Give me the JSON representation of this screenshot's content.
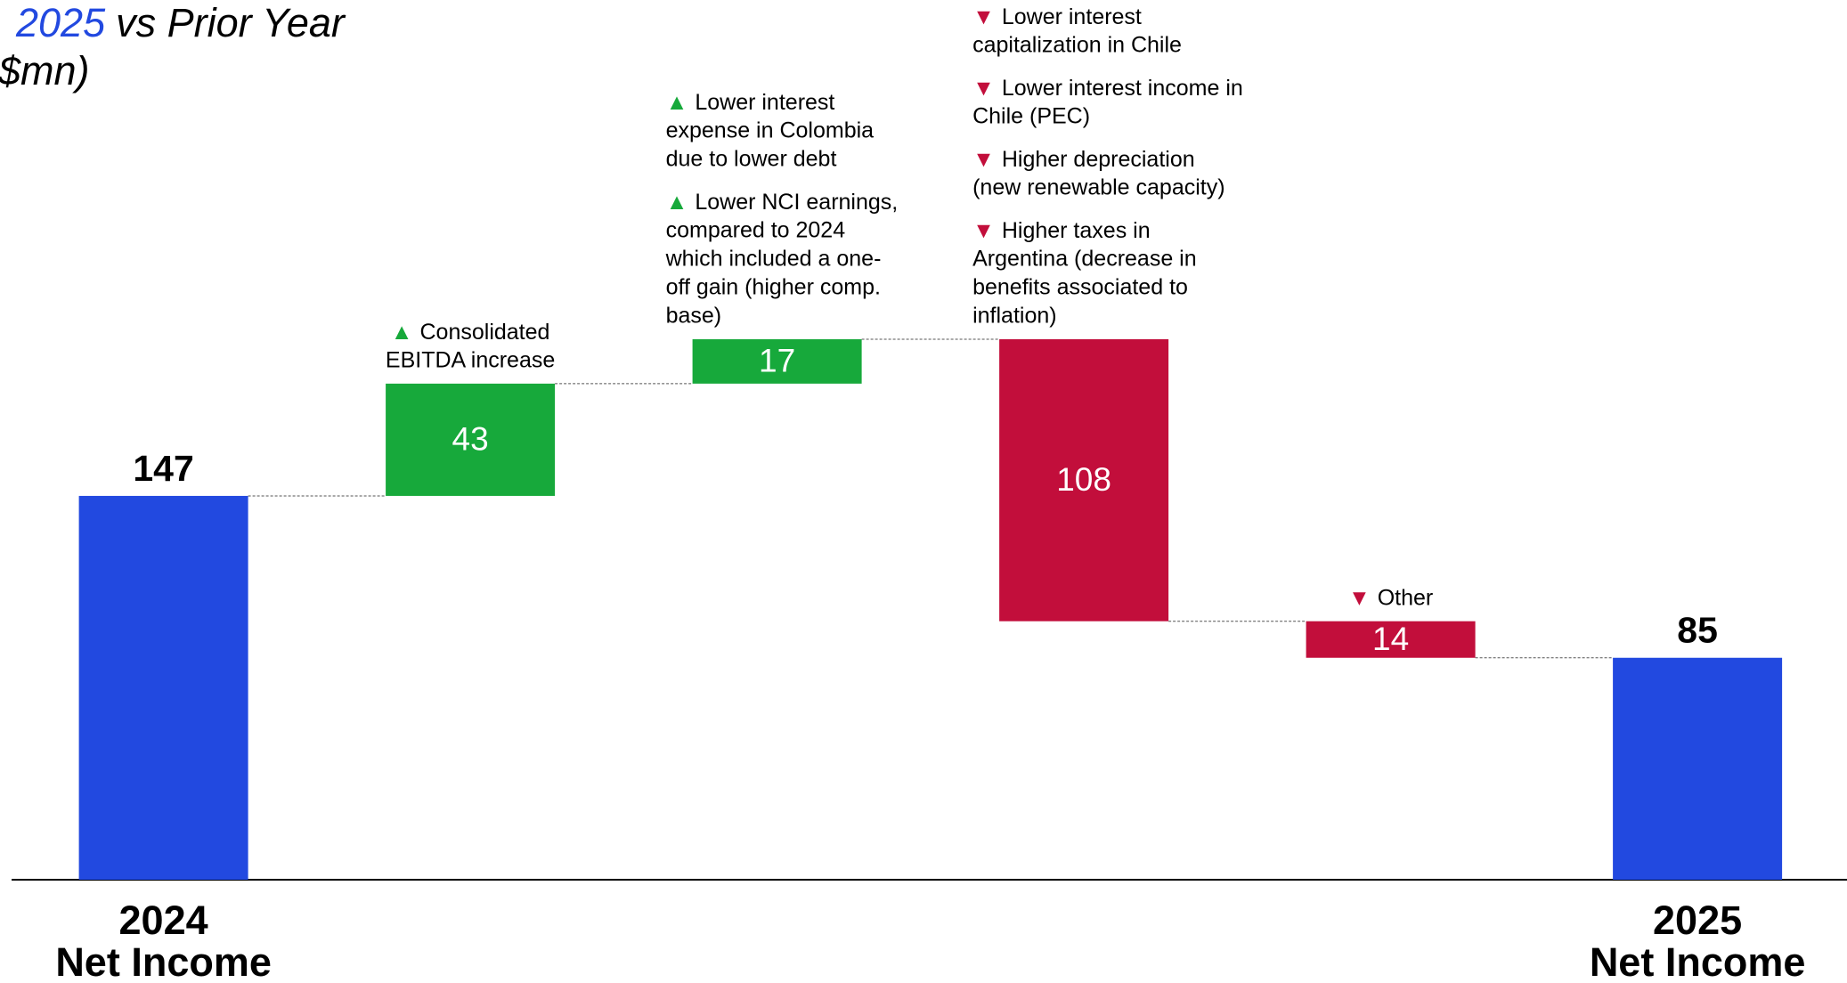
{
  "chart_data": {
    "type": "waterfall",
    "title": {
      "highlight": "2025",
      "rest": "vs Prior Year"
    },
    "subtitle": "$mn)",
    "categories": [
      [
        "2024",
        "Net Income"
      ],
      null,
      null,
      null,
      null,
      [
        "2025",
        "Net Income"
      ]
    ],
    "kinds": [
      "total",
      "increase",
      "increase",
      "decrease",
      "decrease",
      "total"
    ],
    "values": [
      147,
      43,
      17,
      -108,
      -14,
      85
    ],
    "value_labels": [
      "147",
      "43",
      "17",
      "108",
      "14",
      "85"
    ],
    "colors": {
      "total": "#2249e0",
      "increase": "#17a93b",
      "decrease": "#c20e3b"
    },
    "annotations": [
      null,
      [
        {
          "marker": "▲",
          "lines": [
            "Consolidated",
            "EBITDA increase"
          ]
        }
      ],
      [
        {
          "marker": "▲",
          "lines": [
            "Lower interest",
            "expense in Colombia",
            "due to lower debt"
          ]
        },
        {
          "marker": "▲",
          "lines": [
            "Lower NCI earnings,",
            "compared to 2024",
            "which included a one-",
            "off gain (higher comp.",
            "base)"
          ]
        }
      ],
      [
        {
          "marker": "▼",
          "lines": [
            "Lower interest",
            "capitalization in Chile"
          ]
        },
        {
          "marker": "▼",
          "lines": [
            "Lower interest income in",
            "Chile (PEC)"
          ]
        },
        {
          "marker": "▼",
          "lines": [
            "Higher depreciation",
            "(new renewable capacity)"
          ]
        },
        {
          "marker": "▼",
          "lines": [
            "Higher taxes in",
            "Argentina (decrease in",
            "benefits associated to",
            "inflation)"
          ]
        }
      ],
      [
        {
          "marker": "▼",
          "lines": [
            "Other"
          ]
        }
      ],
      null
    ]
  }
}
